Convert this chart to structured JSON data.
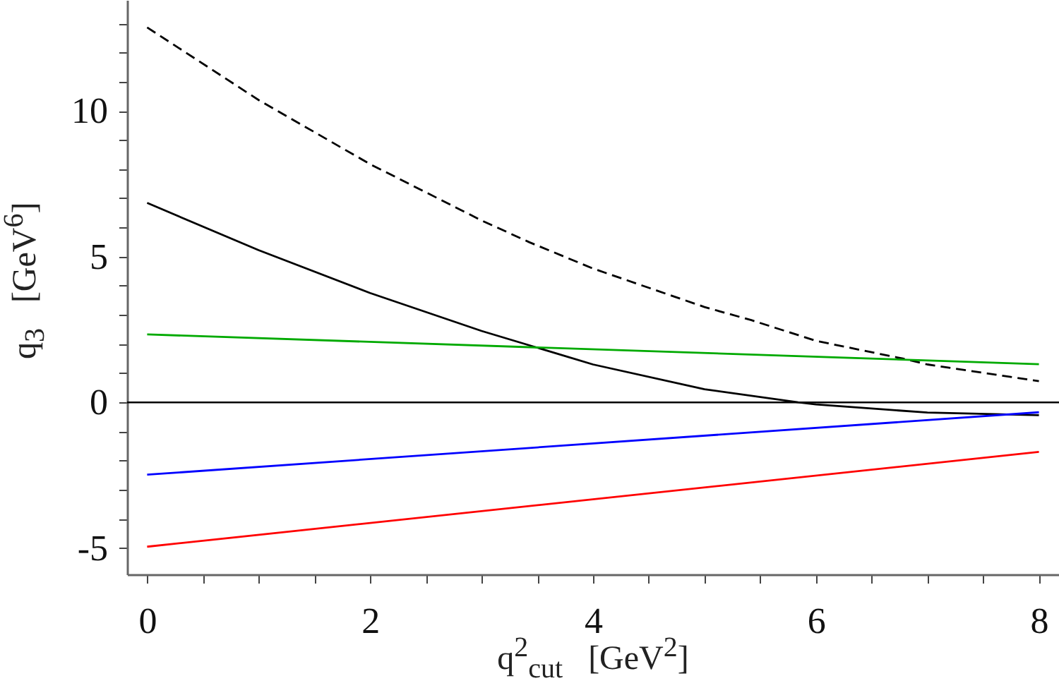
{
  "chart_data": {
    "type": "line",
    "xlabel": "q$^{2}$$_{cut}$   [GeV$^{2}$]",
    "ylabel": "q$_{3}$   [GeV$^{6}$]",
    "xlim": [
      -0.18,
      8.18
    ],
    "ylim": [
      -5.9,
      13.8
    ],
    "xticks": [
      0,
      {
        "value": 0.5,
        "label": null
      },
      {
        "value": 1,
        "label": null
      },
      {
        "value": 1.5,
        "label": null
      },
      2,
      {
        "value": 2.5,
        "label": null
      },
      {
        "value": 3,
        "label": null
      },
      {
        "value": 3.5,
        "label": null
      },
      4,
      {
        "value": 4.5,
        "label": null
      },
      {
        "value": 5,
        "label": null
      },
      {
        "value": 5.5,
        "label": null
      },
      6,
      {
        "value": 6.5,
        "label": null
      },
      {
        "value": 7,
        "label": null
      },
      {
        "value": 7.5,
        "label": null
      },
      8
    ],
    "yticks": [
      -5,
      {
        "value": -4,
        "label": null
      },
      {
        "value": -3,
        "label": null
      },
      {
        "value": -2,
        "label": null
      },
      {
        "value": -1,
        "label": null
      },
      0,
      {
        "value": 1,
        "label": null
      },
      {
        "value": 2,
        "label": null
      },
      {
        "value": 3,
        "label": null
      },
      {
        "value": 4,
        "label": null
      },
      5,
      {
        "value": 6,
        "label": null
      },
      {
        "value": 7,
        "label": null
      },
      {
        "value": 8,
        "label": null
      },
      {
        "value": 9,
        "label": null
      },
      10,
      {
        "value": 11,
        "label": null
      },
      {
        "value": 12,
        "label": null
      },
      {
        "value": 13,
        "label": null
      }
    ],
    "grid": false,
    "marker": "none",
    "ref_lines": [
      {
        "axis": "y",
        "value": 0,
        "color": "#000000"
      }
    ],
    "series": [
      {
        "color": "#000000",
        "line_style": "dashed",
        "x": [
          0,
          1,
          2,
          3,
          3.43,
          4,
          5,
          5.42,
          6,
          6.78,
          7,
          8
        ],
        "values": [
          12.86,
          10.37,
          8.17,
          6.24,
          5.49,
          4.59,
          3.27,
          2.82,
          2.11,
          1.5,
          1.3,
          0.73
        ]
      },
      {
        "color": "#000000",
        "line_style": "solid",
        "x": [
          0,
          1,
          2,
          3,
          4,
          5,
          5.84,
          6,
          7,
          8
        ],
        "values": [
          6.84,
          5.22,
          3.75,
          2.45,
          1.3,
          0.45,
          0,
          -0.07,
          -0.35,
          -0.44
        ]
      },
      {
        "color": "#00aa00",
        "line_style": "solid",
        "x": [
          0,
          8
        ],
        "values": [
          2.33,
          1.31
        ]
      },
      {
        "color": "#0000ff",
        "line_style": "solid",
        "x": [
          0,
          8
        ],
        "values": [
          -2.48,
          -0.34
        ]
      },
      {
        "color": "#ff0000",
        "line_style": "solid",
        "x": [
          0,
          8
        ],
        "values": [
          -4.95,
          -1.7
        ]
      }
    ]
  }
}
